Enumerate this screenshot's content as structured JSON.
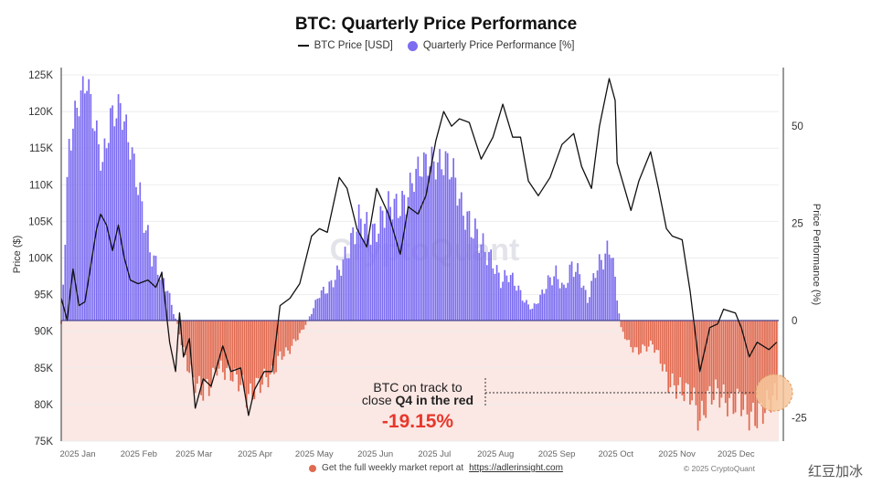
{
  "title": "BTC: Quarterly Price Performance",
  "legend": {
    "price_label": "BTC Price [USD]",
    "perf_label": "Quarterly Price Performance [%]"
  },
  "footer": {
    "text": "Get the full weekly market report at",
    "link": "https://adlerinsight.com"
  },
  "copyright": "© 2025 CryptoQuant",
  "corner_mark": "红豆加冰",
  "watermark": "CryptoQuant",
  "annotation": {
    "line1": "BTC on track to",
    "line2_prefix": "close ",
    "line2_bold": "Q4 in the red",
    "value": "-19.15%"
  },
  "colors": {
    "price_line": "#111111",
    "positive_bar": "#7b6cf0",
    "negative_bar": "#e06a50",
    "negative_bg": "#fbe7e3",
    "annotation_value": "#e8372c"
  },
  "chart_data": {
    "type": "bar+line",
    "title": "BTC: Quarterly Price Performance",
    "ylabel": "Price ($)",
    "y2label": "Price Performance (%)",
    "ylim": [
      75000,
      126000
    ],
    "y2lim": [
      -31,
      65
    ],
    "yticks": [
      75000,
      80000,
      85000,
      90000,
      95000,
      100000,
      105000,
      110000,
      115000,
      120000,
      125000
    ],
    "ytick_labels": [
      "75K",
      "80K",
      "85K",
      "90K",
      "95K",
      "100K",
      "105K",
      "110K",
      "115K",
      "120K",
      "125K"
    ],
    "y2ticks": [
      -25,
      0,
      25,
      50
    ],
    "y2tick_labels": [
      "-25",
      "0",
      "25",
      "50"
    ],
    "xlim": [
      "2025-01-01",
      "2025-12-31"
    ],
    "xticks": [
      "2025-01-01",
      "2025-02-01",
      "2025-03-01",
      "2025-04-01",
      "2025-05-01",
      "2025-06-01",
      "2025-07-01",
      "2025-08-01",
      "2025-09-01",
      "2025-10-01",
      "2025-11-01",
      "2025-12-01"
    ],
    "xtick_labels": [
      "2025 Jan",
      "2025 Feb",
      "2025 Mar",
      "2025 Apr",
      "2025 May",
      "2025 Jun",
      "2025 Jul",
      "2025 Aug",
      "2025 Sep",
      "2025 Oct",
      "2025 Nov",
      "2025 Dec"
    ],
    "grid": true,
    "legend_position": "top",
    "series": [
      {
        "name": "BTC Price [USD]",
        "type": "line",
        "axis": "left",
        "points": [
          [
            "2025-01-01",
            94500
          ],
          [
            "2025-01-04",
            91500
          ],
          [
            "2025-01-07",
            98500
          ],
          [
            "2025-01-10",
            93500
          ],
          [
            "2025-01-13",
            94000
          ],
          [
            "2025-01-16",
            99000
          ],
          [
            "2025-01-19",
            104000
          ],
          [
            "2025-01-21",
            106000
          ],
          [
            "2025-01-24",
            104500
          ],
          [
            "2025-01-27",
            101000
          ],
          [
            "2025-01-30",
            104500
          ],
          [
            "2025-02-02",
            100000
          ],
          [
            "2025-02-05",
            97000
          ],
          [
            "2025-02-09",
            96500
          ],
          [
            "2025-02-14",
            97000
          ],
          [
            "2025-02-18",
            96000
          ],
          [
            "2025-02-21",
            98000
          ],
          [
            "2025-02-25",
            88500
          ],
          [
            "2025-02-28",
            84500
          ],
          [
            "2025-03-02",
            92500
          ],
          [
            "2025-03-04",
            86500
          ],
          [
            "2025-03-07",
            89000
          ],
          [
            "2025-03-10",
            79500
          ],
          [
            "2025-03-14",
            83500
          ],
          [
            "2025-03-18",
            82500
          ],
          [
            "2025-03-24",
            88000
          ],
          [
            "2025-03-28",
            84500
          ],
          [
            "2025-04-02",
            85000
          ],
          [
            "2025-04-06",
            78500
          ],
          [
            "2025-04-09",
            82000
          ],
          [
            "2025-04-14",
            84500
          ],
          [
            "2025-04-18",
            84500
          ],
          [
            "2025-04-22",
            93500
          ],
          [
            "2025-04-27",
            94500
          ],
          [
            "2025-05-02",
            96500
          ],
          [
            "2025-05-08",
            103000
          ],
          [
            "2025-05-12",
            104000
          ],
          [
            "2025-05-16",
            103500
          ],
          [
            "2025-05-22",
            111000
          ],
          [
            "2025-05-26",
            109500
          ],
          [
            "2025-05-31",
            104000
          ],
          [
            "2025-06-05",
            101500
          ],
          [
            "2025-06-10",
            109500
          ],
          [
            "2025-06-16",
            106000
          ],
          [
            "2025-06-22",
            100500
          ],
          [
            "2025-06-26",
            107000
          ],
          [
            "2025-07-01",
            106000
          ],
          [
            "2025-07-05",
            108500
          ],
          [
            "2025-07-10",
            116000
          ],
          [
            "2025-07-14",
            120000
          ],
          [
            "2025-07-18",
            118000
          ],
          [
            "2025-07-22",
            119000
          ],
          [
            "2025-07-27",
            118500
          ],
          [
            "2025-08-02",
            113500
          ],
          [
            "2025-08-08",
            116500
          ],
          [
            "2025-08-13",
            121000
          ],
          [
            "2025-08-18",
            116500
          ],
          [
            "2025-08-22",
            116500
          ],
          [
            "2025-08-26",
            110500
          ],
          [
            "2025-08-31",
            108500
          ],
          [
            "2025-09-06",
            111000
          ],
          [
            "2025-09-12",
            115500
          ],
          [
            "2025-09-18",
            117000
          ],
          [
            "2025-09-22",
            112500
          ],
          [
            "2025-09-27",
            109500
          ],
          [
            "2025-10-01",
            118000
          ],
          [
            "2025-10-06",
            124500
          ],
          [
            "2025-10-09",
            121500
          ],
          [
            "2025-10-10",
            113000
          ],
          [
            "2025-10-17",
            106500
          ],
          [
            "2025-10-21",
            110500
          ],
          [
            "2025-10-27",
            114500
          ],
          [
            "2025-10-31",
            109500
          ],
          [
            "2025-11-04",
            104000
          ],
          [
            "2025-11-07",
            103000
          ],
          [
            "2025-11-12",
            102500
          ],
          [
            "2025-11-16",
            95500
          ],
          [
            "2025-11-21",
            84500
          ],
          [
            "2025-11-26",
            90500
          ],
          [
            "2025-11-30",
            91000
          ],
          [
            "2025-12-03",
            93000
          ],
          [
            "2025-12-09",
            92500
          ],
          [
            "2025-12-12",
            90500
          ],
          [
            "2025-12-16",
            86500
          ],
          [
            "2025-12-20",
            88500
          ],
          [
            "2025-12-26",
            87500
          ],
          [
            "2025-12-30",
            88500
          ]
        ]
      },
      {
        "name": "Quarterly Price Performance [%]",
        "type": "bar",
        "axis": "right",
        "points": [
          [
            "2025-01-01",
            -1
          ],
          [
            "2025-01-05",
            45
          ],
          [
            "2025-01-09",
            55
          ],
          [
            "2025-01-14",
            62
          ],
          [
            "2025-01-18",
            50
          ],
          [
            "2025-01-22",
            40
          ],
          [
            "2025-01-26",
            52
          ],
          [
            "2025-01-31",
            55
          ],
          [
            "2025-02-05",
            45
          ],
          [
            "2025-02-10",
            32
          ],
          [
            "2025-02-15",
            18
          ],
          [
            "2025-02-20",
            12
          ],
          [
            "2025-02-24",
            8
          ],
          [
            "2025-02-27",
            2
          ],
          [
            "2025-03-01",
            -1
          ],
          [
            "2025-03-05",
            -10
          ],
          [
            "2025-03-09",
            -15
          ],
          [
            "2025-03-13",
            -18
          ],
          [
            "2025-03-17",
            -17
          ],
          [
            "2025-03-21",
            -12
          ],
          [
            "2025-03-25",
            -13
          ],
          [
            "2025-03-29",
            -14
          ],
          [
            "2025-04-02",
            -16
          ],
          [
            "2025-04-06",
            -20
          ],
          [
            "2025-04-10",
            -17
          ],
          [
            "2025-04-14",
            -15
          ],
          [
            "2025-04-18",
            -14
          ],
          [
            "2025-04-22",
            -9
          ],
          [
            "2025-04-26",
            -8
          ],
          [
            "2025-04-30",
            -5
          ],
          [
            "2025-05-04",
            -2
          ],
          [
            "2025-05-08",
            2
          ],
          [
            "2025-05-12",
            7
          ],
          [
            "2025-05-16",
            8
          ],
          [
            "2025-05-20",
            11
          ],
          [
            "2025-05-24",
            15
          ],
          [
            "2025-05-28",
            20
          ],
          [
            "2025-06-01",
            26
          ],
          [
            "2025-06-05",
            24
          ],
          [
            "2025-06-09",
            22
          ],
          [
            "2025-06-13",
            27
          ],
          [
            "2025-06-17",
            30
          ],
          [
            "2025-06-21",
            29
          ],
          [
            "2025-06-25",
            31
          ],
          [
            "2025-06-29",
            37
          ],
          [
            "2025-07-03",
            40
          ],
          [
            "2025-07-07",
            41
          ],
          [
            "2025-07-11",
            40
          ],
          [
            "2025-07-15",
            41
          ],
          [
            "2025-07-19",
            38
          ],
          [
            "2025-07-23",
            29
          ],
          [
            "2025-07-27",
            25
          ],
          [
            "2025-07-31",
            22
          ],
          [
            "2025-08-04",
            18
          ],
          [
            "2025-08-08",
            15
          ],
          [
            "2025-08-12",
            10
          ],
          [
            "2025-08-16",
            12
          ],
          [
            "2025-08-20",
            9
          ],
          [
            "2025-08-24",
            5
          ],
          [
            "2025-08-28",
            3
          ],
          [
            "2025-09-01",
            6
          ],
          [
            "2025-09-05",
            10
          ],
          [
            "2025-09-09",
            12
          ],
          [
            "2025-09-13",
            8
          ],
          [
            "2025-09-17",
            14
          ],
          [
            "2025-09-21",
            12
          ],
          [
            "2025-09-25",
            5
          ],
          [
            "2025-09-29",
            13
          ],
          [
            "2025-10-03",
            16
          ],
          [
            "2025-10-07",
            19
          ],
          [
            "2025-10-09",
            10
          ],
          [
            "2025-10-12",
            -2
          ],
          [
            "2025-10-16",
            -6
          ],
          [
            "2025-10-20",
            -8
          ],
          [
            "2025-10-24",
            -7
          ],
          [
            "2025-10-28",
            -6
          ],
          [
            "2025-11-01",
            -10
          ],
          [
            "2025-11-05",
            -16
          ],
          [
            "2025-11-09",
            -17
          ],
          [
            "2025-11-13",
            -18
          ],
          [
            "2025-11-17",
            -19
          ],
          [
            "2025-11-21",
            -26
          ],
          [
            "2025-11-25",
            -20
          ],
          [
            "2025-11-29",
            -18
          ],
          [
            "2025-12-03",
            -20
          ],
          [
            "2025-12-07",
            -22
          ],
          [
            "2025-12-11",
            -20
          ],
          [
            "2025-12-15",
            -24
          ],
          [
            "2025-12-19",
            -25
          ],
          [
            "2025-12-23",
            -23
          ],
          [
            "2025-12-27",
            -20
          ],
          [
            "2025-12-30",
            -19.15
          ]
        ]
      }
    ],
    "annotations": [
      {
        "text": "BTC on track to close Q4 in the red",
        "value": "-19.15%"
      }
    ]
  }
}
